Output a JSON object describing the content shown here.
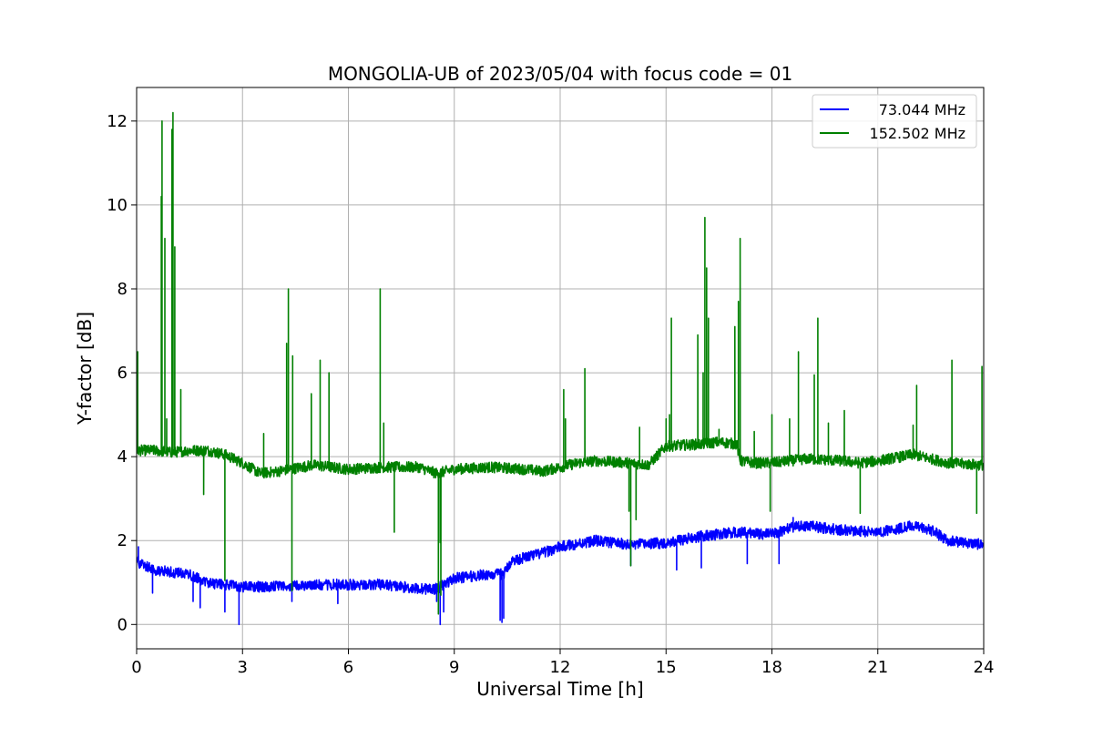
{
  "chart_data": {
    "type": "line",
    "title": "MONGOLIA-UB of 2023/05/04 with focus code = 01",
    "xlabel": "Universal Time [h]",
    "ylabel": "Y-factor [dB]",
    "xlim": [
      0,
      24
    ],
    "ylim": [
      -0.58,
      12.8
    ],
    "xticks": [
      0,
      3,
      6,
      9,
      12,
      15,
      18,
      21,
      24
    ],
    "yticks": [
      0,
      2,
      4,
      6,
      8,
      10,
      12
    ],
    "xtick_labels": [
      "0",
      "3",
      "6",
      "9",
      "12",
      "15",
      "18",
      "21",
      "24"
    ],
    "ytick_labels": [
      "0",
      "2",
      "4",
      "6",
      "8",
      "10",
      "12"
    ],
    "grid": true,
    "legend_position": "top-right",
    "series": [
      {
        "name": "73.044 MHz",
        "color": "#0000ff",
        "noise": 0.13,
        "baseline": [
          [
            0,
            1.5
          ],
          [
            0.5,
            1.3
          ],
          [
            1,
            1.25
          ],
          [
            1.5,
            1.2
          ],
          [
            2,
            1.0
          ],
          [
            2.5,
            0.95
          ],
          [
            3,
            0.9
          ],
          [
            4,
            0.9
          ],
          [
            5,
            0.95
          ],
          [
            6,
            0.95
          ],
          [
            7,
            0.95
          ],
          [
            8,
            0.85
          ],
          [
            8.5,
            0.85
          ],
          [
            9,
            1.1
          ],
          [
            10,
            1.2
          ],
          [
            10.4,
            1.2
          ],
          [
            10.6,
            1.5
          ],
          [
            11,
            1.6
          ],
          [
            11.5,
            1.7
          ],
          [
            12,
            1.85
          ],
          [
            13,
            2.0
          ],
          [
            14,
            1.9
          ],
          [
            15,
            1.95
          ],
          [
            16,
            2.1
          ],
          [
            17,
            2.2
          ],
          [
            18,
            2.15
          ],
          [
            18.5,
            2.3
          ],
          [
            19,
            2.35
          ],
          [
            20,
            2.25
          ],
          [
            21,
            2.2
          ],
          [
            22,
            2.35
          ],
          [
            22.5,
            2.25
          ],
          [
            23,
            2.0
          ],
          [
            24,
            1.9
          ]
        ],
        "spikes": [
          [
            0.05,
            1.85
          ],
          [
            0.45,
            0.75
          ],
          [
            1.6,
            0.55
          ],
          [
            1.8,
            0.4
          ],
          [
            2.5,
            0.3
          ],
          [
            2.9,
            0.0
          ],
          [
            4.4,
            0.55
          ],
          [
            5.7,
            0.5
          ],
          [
            8.5,
            0.55
          ],
          [
            8.6,
            0.0
          ],
          [
            8.7,
            0.3
          ],
          [
            10.3,
            0.1
          ],
          [
            10.35,
            0.05
          ],
          [
            10.4,
            0.15
          ],
          [
            14.0,
            1.4
          ],
          [
            15.3,
            1.3
          ],
          [
            16.0,
            1.35
          ],
          [
            17.3,
            1.45
          ],
          [
            18.2,
            1.45
          ],
          [
            18.6,
            2.55
          ]
        ]
      },
      {
        "name": "152.502 MHz",
        "color": "#008000",
        "noise": 0.13,
        "baseline": [
          [
            0,
            4.15
          ],
          [
            0.5,
            4.15
          ],
          [
            1,
            4.1
          ],
          [
            1.5,
            4.15
          ],
          [
            2,
            4.15
          ],
          [
            2.5,
            4.05
          ],
          [
            3,
            3.85
          ],
          [
            3.5,
            3.6
          ],
          [
            4,
            3.65
          ],
          [
            5,
            3.8
          ],
          [
            6,
            3.7
          ],
          [
            7,
            3.75
          ],
          [
            8,
            3.75
          ],
          [
            8.5,
            3.6
          ],
          [
            9,
            3.7
          ],
          [
            10,
            3.75
          ],
          [
            11,
            3.7
          ],
          [
            11.5,
            3.65
          ],
          [
            12,
            3.75
          ],
          [
            12.5,
            3.85
          ],
          [
            13,
            3.9
          ],
          [
            14,
            3.85
          ],
          [
            14.5,
            3.8
          ],
          [
            15,
            4.25
          ],
          [
            16,
            4.3
          ],
          [
            16.5,
            4.35
          ],
          [
            17,
            4.3
          ],
          [
            17.1,
            3.9
          ],
          [
            17.5,
            3.85
          ],
          [
            18,
            3.85
          ],
          [
            19,
            3.95
          ],
          [
            20,
            3.9
          ],
          [
            20.5,
            3.85
          ],
          [
            21,
            3.9
          ],
          [
            22,
            4.05
          ],
          [
            23,
            3.85
          ],
          [
            24,
            3.8
          ]
        ],
        "spikes": [
          [
            0.03,
            6.5
          ],
          [
            0.7,
            10.2
          ],
          [
            0.72,
            12.0
          ],
          [
            0.8,
            9.2
          ],
          [
            0.85,
            4.9
          ],
          [
            1.0,
            11.8
          ],
          [
            1.03,
            12.2
          ],
          [
            1.08,
            9.0
          ],
          [
            1.25,
            5.6
          ],
          [
            1.9,
            3.1
          ],
          [
            2.5,
            1.05
          ],
          [
            3.6,
            4.55
          ],
          [
            4.25,
            6.7
          ],
          [
            4.3,
            8.0
          ],
          [
            4.4,
            0.8
          ],
          [
            4.42,
            6.4
          ],
          [
            4.95,
            5.5
          ],
          [
            5.2,
            6.3
          ],
          [
            5.45,
            6.0
          ],
          [
            6.9,
            8.0
          ],
          [
            7.0,
            4.8
          ],
          [
            7.3,
            2.2
          ],
          [
            8.55,
            0.25
          ],
          [
            8.6,
            1.95
          ],
          [
            8.62,
            0.7
          ],
          [
            12.1,
            5.6
          ],
          [
            12.15,
            4.9
          ],
          [
            12.7,
            6.1
          ],
          [
            13.95,
            2.7
          ],
          [
            14.0,
            1.4
          ],
          [
            14.15,
            2.5
          ],
          [
            14.25,
            4.7
          ],
          [
            15.0,
            4.9
          ],
          [
            15.1,
            5.0
          ],
          [
            15.15,
            7.3
          ],
          [
            15.9,
            6.9
          ],
          [
            16.05,
            6.0
          ],
          [
            16.1,
            9.7
          ],
          [
            16.15,
            8.5
          ],
          [
            16.2,
            7.3
          ],
          [
            16.5,
            4.65
          ],
          [
            16.95,
            7.1
          ],
          [
            17.05,
            7.7
          ],
          [
            17.1,
            9.2
          ],
          [
            17.5,
            4.6
          ],
          [
            17.95,
            2.7
          ],
          [
            18.0,
            5.0
          ],
          [
            18.5,
            4.9
          ],
          [
            18.75,
            6.5
          ],
          [
            19.2,
            5.95
          ],
          [
            19.3,
            7.3
          ],
          [
            19.6,
            4.8
          ],
          [
            20.05,
            5.1
          ],
          [
            20.5,
            2.65
          ],
          [
            22.0,
            4.75
          ],
          [
            22.1,
            5.7
          ],
          [
            23.1,
            6.3
          ],
          [
            23.8,
            2.65
          ],
          [
            23.95,
            6.15
          ]
        ]
      }
    ]
  }
}
